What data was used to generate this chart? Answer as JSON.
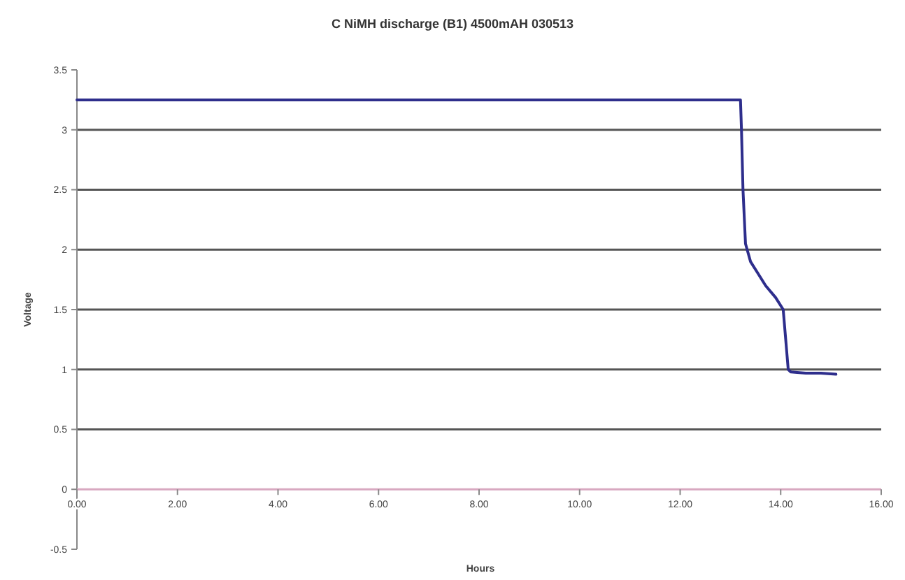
{
  "chart_data": {
    "type": "line",
    "title": "C NiMH discharge (B1) 4500mAH 030513",
    "xlabel": "Hours",
    "ylabel": "Voltage",
    "x": [
      0,
      2,
      4,
      6,
      8,
      10,
      12,
      13.2,
      13.22,
      13.25,
      13.3,
      13.4,
      13.55,
      13.7,
      13.9,
      14.05,
      14.1,
      14.15,
      14.2,
      14.5,
      14.8,
      15.1
    ],
    "series": [
      {
        "color": "#2e2e8c",
        "values": [
          3.25,
          3.25,
          3.25,
          3.25,
          3.25,
          3.25,
          3.25,
          3.25,
          3.0,
          2.5,
          2.05,
          1.9,
          1.8,
          1.7,
          1.6,
          1.5,
          1.25,
          1.0,
          0.98,
          0.97,
          0.97,
          0.96
        ]
      }
    ],
    "xlim": [
      0,
      16
    ],
    "xticks": [
      {
        "value": 0,
        "label": "0.00"
      },
      {
        "value": 2,
        "label": "2.00"
      },
      {
        "value": 4,
        "label": "4.00"
      },
      {
        "value": 6,
        "label": "6.00"
      },
      {
        "value": 8,
        "label": "8.00"
      },
      {
        "value": 10,
        "label": "10.00"
      },
      {
        "value": 12,
        "label": "12.00"
      },
      {
        "value": 14,
        "label": "14.00"
      },
      {
        "value": 16,
        "label": "16.00"
      }
    ],
    "ylim": [
      -0.5,
      3.5
    ],
    "yticks": [
      -0.5,
      0,
      0.5,
      1,
      1.5,
      2,
      2.5,
      3,
      3.5
    ],
    "grid": "y",
    "marker": "none",
    "line_style": "solid"
  }
}
